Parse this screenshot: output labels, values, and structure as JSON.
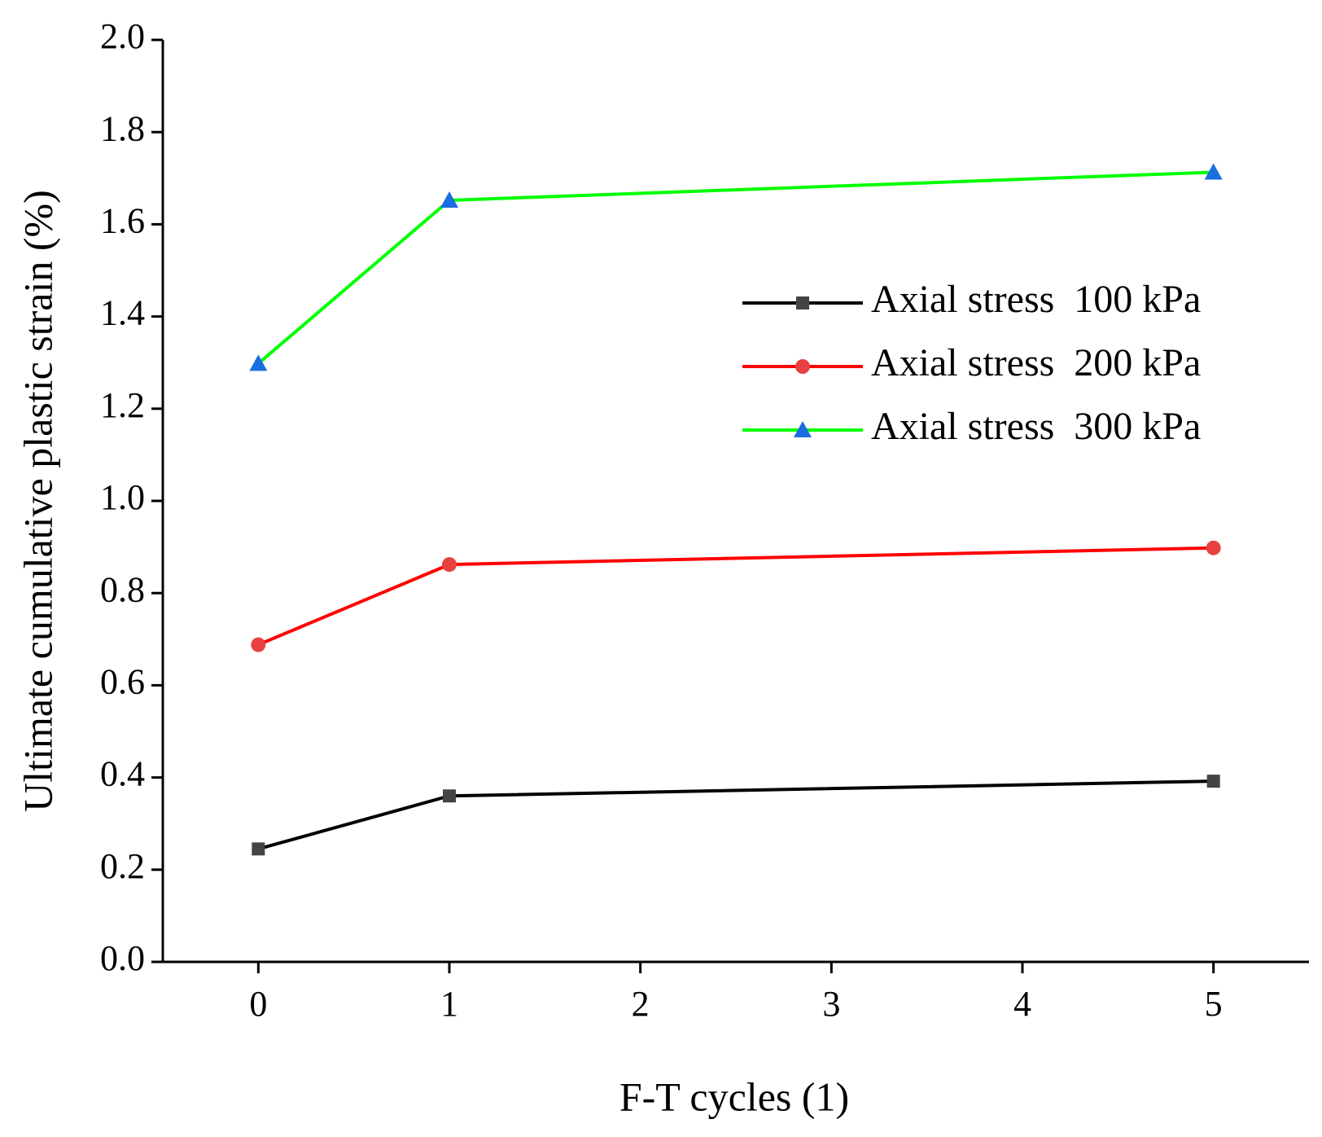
{
  "chart_data": {
    "type": "line",
    "x_label": "F-T cycles (1)",
    "y_label": "Ultimate cumulative plastic strain (%)",
    "x": [
      0,
      1,
      5
    ],
    "series": [
      {
        "name": "Axial stress  100 kPa",
        "color": "#000000",
        "marker_color": "#444444",
        "marker": "square",
        "values": [
          0.245,
          0.36,
          0.392
        ]
      },
      {
        "name": "Axial stress  200 kPa",
        "color": "#ff0000",
        "marker_color": "#e84040",
        "marker": "circle",
        "values": [
          0.688,
          0.862,
          0.898
        ]
      },
      {
        "name": "Axial stress  300 kPa",
        "color": "#00ff00",
        "marker_color": "#1a6ee0",
        "marker": "triangle",
        "values": [
          1.298,
          1.652,
          1.713
        ]
      }
    ],
    "xlim": [
      -0.5,
      5.5
    ],
    "xticks": [
      0,
      1,
      2,
      3,
      4,
      5
    ],
    "ylim": [
      0,
      2
    ],
    "yticks": [
      {
        "value": 0,
        "label": "0.0"
      },
      {
        "value": 0.2,
        "label": "0.2"
      },
      {
        "value": 0.4,
        "label": "0.4"
      },
      {
        "value": 0.6,
        "label": "0.6"
      },
      {
        "value": 0.8,
        "label": "0.8"
      },
      {
        "value": 1,
        "label": "1.0"
      },
      {
        "value": 1.2,
        "label": "1.2"
      },
      {
        "value": 1.4,
        "label": "1.4"
      },
      {
        "value": 1.6,
        "label": "1.6"
      },
      {
        "value": 1.8,
        "label": "1.8"
      },
      {
        "value": 2,
        "label": "2.0"
      }
    ],
    "grid": false,
    "legend": "upper right"
  }
}
